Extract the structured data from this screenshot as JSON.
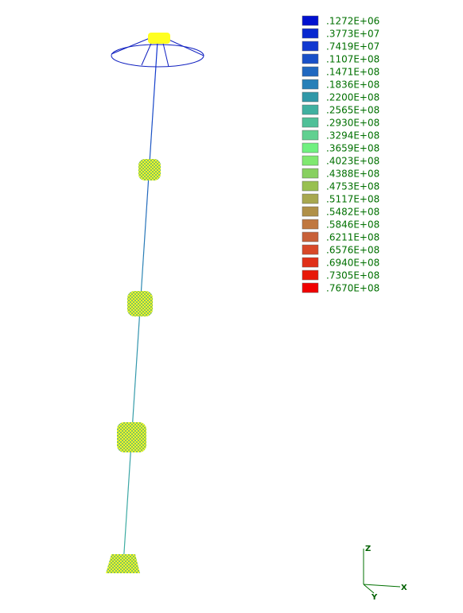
{
  "legend": {
    "entries": [
      {
        "label": ".1272E+06",
        "color": "#0010d0"
      },
      {
        "label": ".3773E+07",
        "color": "#0828d0"
      },
      {
        "label": ".7419E+07",
        "color": "#1038d0"
      },
      {
        "label": ".1107E+08",
        "color": "#1850c8"
      },
      {
        "label": ".1471E+08",
        "color": "#2068c0"
      },
      {
        "label": ".1836E+08",
        "color": "#2880b8"
      },
      {
        "label": ".2200E+08",
        "color": "#3098a8"
      },
      {
        "label": ".2565E+08",
        "color": "#40b0a0"
      },
      {
        "label": ".2930E+08",
        "color": "#50c098"
      },
      {
        "label": ".3294E+08",
        "color": "#60d090"
      },
      {
        "label": ".3659E+08",
        "color": "#70f080"
      },
      {
        "label": ".4023E+08",
        "color": "#80e870"
      },
      {
        "label": ".4388E+08",
        "color": "#88d060"
      },
      {
        "label": ".4753E+08",
        "color": "#98c050"
      },
      {
        "label": ".5117E+08",
        "color": "#a8a850"
      },
      {
        "label": ".5482E+08",
        "color": "#b09048"
      },
      {
        "label": ".5846E+08",
        "color": "#c07840"
      },
      {
        "label": ".6211E+08",
        "color": "#c86038"
      },
      {
        "label": ".6576E+08",
        "color": "#d84828"
      },
      {
        "label": ".6940E+08",
        "color": "#e03018"
      },
      {
        "label": ".7305E+08",
        "color": "#e81808"
      },
      {
        "label": ".7670E+08",
        "color": "#f00000"
      }
    ]
  },
  "axes": {
    "z": "Z",
    "y": "Y",
    "x": "X"
  }
}
